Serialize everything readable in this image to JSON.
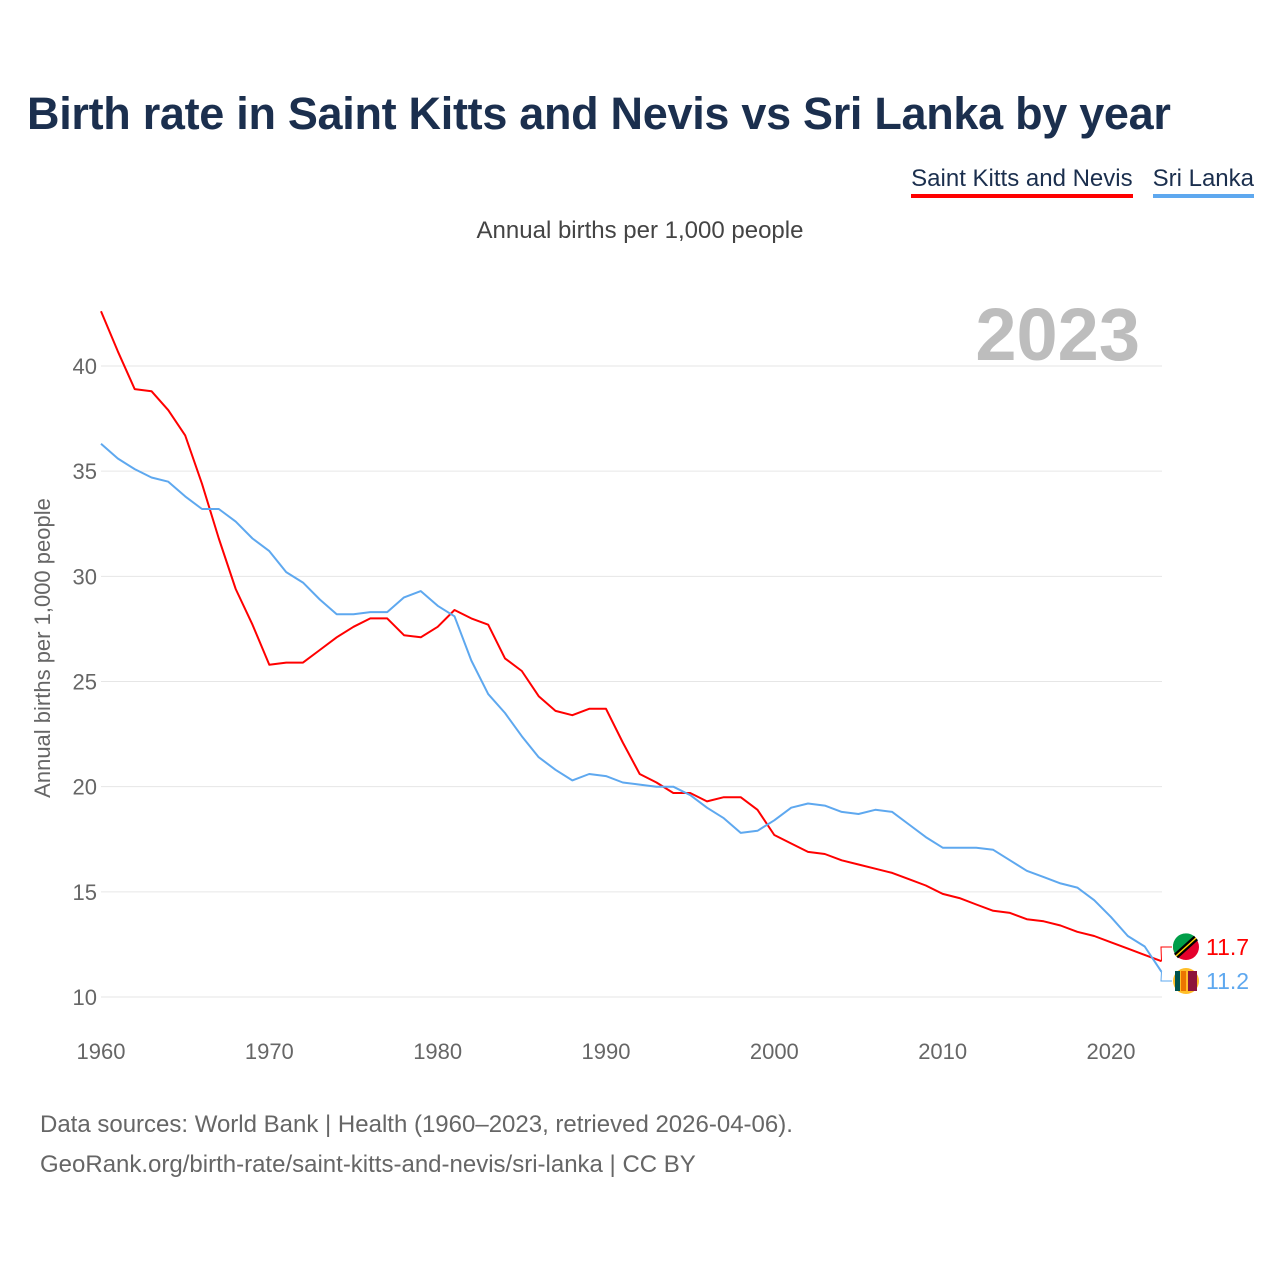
{
  "title": "Birth rate in Saint Kitts and Nevis vs Sri Lanka by year",
  "subtitle": "Annual births per 1,000 people",
  "year_label": "2023",
  "footer": {
    "line1": "Data sources: World Bank | Health (1960–2023, retrieved 2026-04-06).",
    "line2": "GeoRank.org/birth-rate/saint-kitts-and-nevis/sri-lanka | CC BY"
  },
  "chart_data": {
    "type": "line",
    "title": "Birth rate in Saint Kitts and Nevis vs Sri Lanka by year",
    "xlabel": "",
    "ylabel": "Annual births per 1,000 people",
    "xlim": [
      1960,
      2023
    ],
    "ylim": [
      10,
      42.6
    ],
    "xticks": [
      "1960",
      "1970",
      "1980",
      "1990",
      "2000",
      "2010",
      "2020"
    ],
    "yticks": [
      "10",
      "15",
      "20",
      "25",
      "30",
      "35",
      "40"
    ],
    "grid": true,
    "legend": "top-right",
    "x_start": 1960,
    "series": [
      {
        "name": "Saint Kitts and Nevis",
        "color": "#ff0000",
        "end_label": "11.7",
        "values": [
          42.6,
          40.7,
          38.9,
          38.8,
          37.9,
          36.7,
          34.4,
          31.8,
          29.4,
          27.7,
          25.8,
          25.9,
          25.9,
          26.5,
          27.1,
          27.6,
          28.0,
          28.0,
          27.2,
          27.1,
          27.6,
          28.4,
          28.0,
          27.7,
          26.1,
          25.5,
          24.3,
          23.6,
          23.4,
          23.7,
          23.7,
          22.1,
          20.6,
          20.2,
          19.7,
          19.7,
          19.3,
          19.5,
          19.5,
          18.9,
          17.7,
          17.3,
          16.9,
          16.8,
          16.5,
          16.3,
          16.1,
          15.9,
          15.6,
          15.3,
          14.9,
          14.7,
          14.4,
          14.1,
          14.0,
          13.7,
          13.6,
          13.4,
          13.1,
          12.9,
          12.6,
          12.3,
          12.0,
          11.7
        ]
      },
      {
        "name": "Sri Lanka",
        "color": "#5ea8ef",
        "end_label": "11.2",
        "values": [
          36.3,
          35.6,
          35.1,
          34.7,
          34.5,
          33.8,
          33.2,
          33.2,
          32.6,
          31.8,
          31.2,
          30.2,
          29.7,
          28.9,
          28.2,
          28.2,
          28.3,
          28.3,
          29.0,
          29.3,
          28.6,
          28.1,
          26.0,
          24.4,
          23.5,
          22.4,
          21.4,
          20.8,
          20.3,
          20.6,
          20.5,
          20.2,
          20.1,
          20.0,
          20.0,
          19.6,
          19.0,
          18.5,
          17.8,
          17.9,
          18.4,
          19.0,
          19.2,
          19.1,
          18.8,
          18.7,
          18.9,
          18.8,
          18.2,
          17.6,
          17.1,
          17.1,
          17.1,
          17.0,
          16.5,
          16.0,
          15.7,
          15.4,
          15.2,
          14.6,
          13.8,
          12.9,
          12.4,
          11.2
        ]
      }
    ]
  }
}
